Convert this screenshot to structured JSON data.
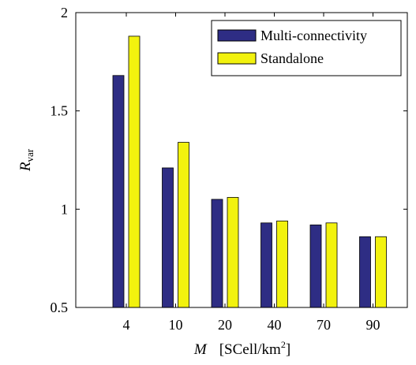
{
  "chart_data": {
    "type": "bar",
    "categories": [
      "4",
      "10",
      "20",
      "40",
      "70",
      "90"
    ],
    "series": [
      {
        "name": "Multi-connectivity",
        "values": [
          1.68,
          1.21,
          1.05,
          0.93,
          0.92,
          0.86
        ],
        "color": "#2e2d84"
      },
      {
        "name": "Standalone",
        "values": [
          1.88,
          1.34,
          1.06,
          0.94,
          0.93,
          0.86
        ],
        "color": "#f2f20e"
      }
    ],
    "ylim": [
      0.5,
      2
    ],
    "yticks": [
      "0.5",
      "1",
      "1.5",
      "2"
    ],
    "ylabel": {
      "main": "R",
      "sub": "var"
    },
    "xlabel": {
      "symbol": "M",
      "unit": "[SCell/km",
      "sup": "2",
      "close": "]"
    },
    "legend_position": "top-right",
    "grid": false
  }
}
